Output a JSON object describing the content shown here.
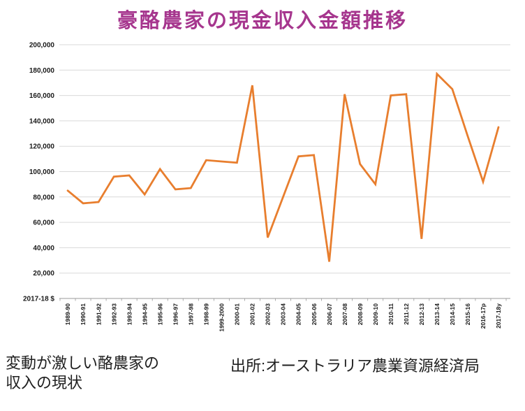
{
  "title": "豪酪農家の現金収入金額推移",
  "caption": {
    "line1": "変動が激しい酪農家の",
    "line2": "収入の現状"
  },
  "source": "出所:オーストラリア農業資源経済局",
  "colors": {
    "title": "#A6368E",
    "line": "#E87E2E",
    "grid": "#D9D9D9",
    "axis": "#9A9A9A",
    "label": "#1a1a1a"
  },
  "chart_data": {
    "type": "line",
    "title": "豪酪農家の現金収入金額推移",
    "unit_label": "2017-18 $",
    "categories": [
      "1989-90",
      "1990-91",
      "1991-92",
      "1992-93",
      "1993-94",
      "1994-95",
      "1995-96",
      "1996-97",
      "1997-98",
      "1998-99",
      "1999-2000",
      "2000-01",
      "2001-02",
      "2002-03",
      "2003-04",
      "2004-05",
      "2005-06",
      "2006-07",
      "2007-08",
      "2008-09",
      "2009-10",
      "2010-11",
      "2011-12",
      "2012-13",
      "2013-14",
      "2014-15",
      "2015-16",
      "2016-17p",
      "2017-18y"
    ],
    "values": [
      85000,
      75000,
      76000,
      96000,
      97000,
      82000,
      102000,
      86000,
      87000,
      109000,
      108000,
      107000,
      168000,
      48000,
      80000,
      112000,
      113000,
      29000,
      161000,
      106000,
      90000,
      160000,
      161000,
      47000,
      177000,
      165000,
      128000,
      92000,
      135000
    ],
    "xlabel": "",
    "ylabel": "",
    "ylim": [
      0,
      200000
    ],
    "ytick_step": 20000,
    "ytick_labels": [
      "20,000",
      "40,000",
      "60,000",
      "80,000",
      "100,000",
      "120,000",
      "140,000",
      "160,000",
      "180,000",
      "200,000"
    ],
    "grid": "horizontal",
    "legend": "none",
    "line_color": "#E87E2E"
  }
}
